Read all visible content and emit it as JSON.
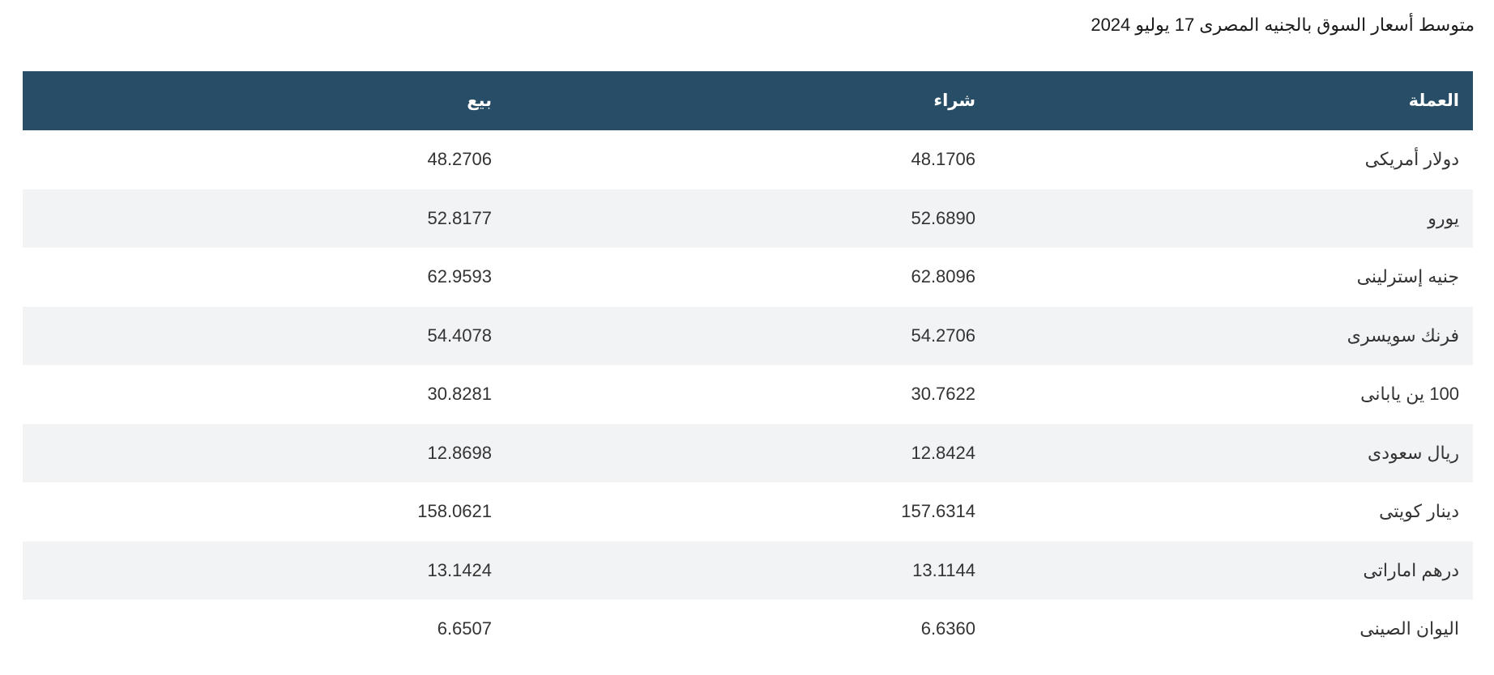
{
  "title": "متوسط أسعار السوق بالجنيه المصرى 17 يوليو 2024",
  "table": {
    "headers": {
      "currency": "العملة",
      "buy": "شراء",
      "sell": "بيع"
    },
    "rows": [
      {
        "currency": "دولار أمريكى",
        "buy": "48.1706",
        "sell": "48.2706"
      },
      {
        "currency": "يورو",
        "buy": "52.6890",
        "sell": "52.8177"
      },
      {
        "currency": "جنيه إسترلينى",
        "buy": "62.8096",
        "sell": "62.9593"
      },
      {
        "currency": "فرنك سويسرى",
        "buy": "54.2706",
        "sell": "54.4078"
      },
      {
        "currency": "100 ين يابانى",
        "buy": "30.7622",
        "sell": "30.8281"
      },
      {
        "currency": "ريال سعودى",
        "buy": "12.8424",
        "sell": "12.8698"
      },
      {
        "currency": "دينار كويتى",
        "buy": "157.6314",
        "sell": "158.0621"
      },
      {
        "currency": "درهم اماراتى",
        "buy": "13.1144",
        "sell": "13.1424"
      },
      {
        "currency": "اليوان الصينى",
        "buy": "6.6360",
        "sell": "6.6507"
      }
    ]
  },
  "colors": {
    "header_bg": "#284d66",
    "header_text": "#ffffff",
    "row_alt_bg": "#f2f3f5"
  }
}
